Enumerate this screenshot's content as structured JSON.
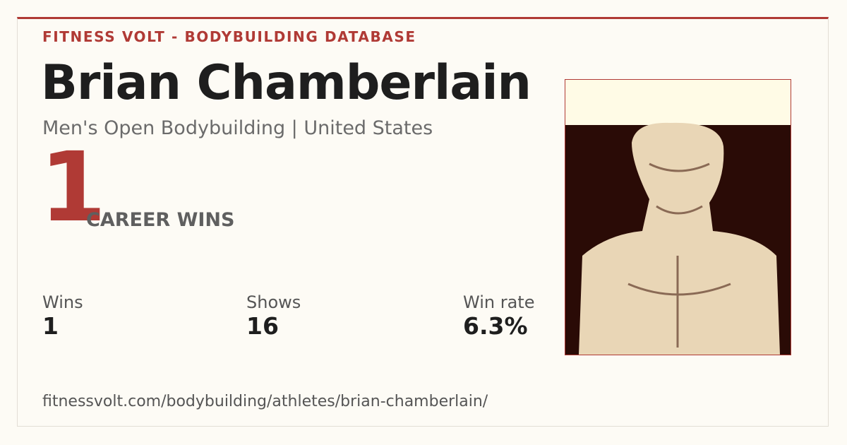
{
  "header": {
    "brand": "FITNESS VOLT - BODYBUILDING DATABASE"
  },
  "athlete": {
    "name": "Brian Chamberlain",
    "subtitle": "Men's Open Bodybuilding | United States"
  },
  "highlight": {
    "value": "1",
    "label": "CAREER WINS"
  },
  "stats": [
    {
      "label": "Wins",
      "value": "1"
    },
    {
      "label": "Shows",
      "value": "16"
    },
    {
      "label": "Win rate",
      "value": "6.3%"
    }
  ],
  "footer": {
    "url": "fitnessvolt.com/bodybuilding/athletes/brian-chamberlain/"
  }
}
